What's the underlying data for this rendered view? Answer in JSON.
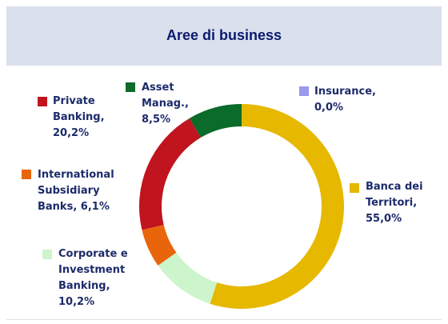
{
  "chart_data": {
    "type": "donut",
    "title": "Aree di business",
    "categories": [
      "Banca dei Territori,",
      "Corporate e Investment Banking,",
      "International Subsidiary Banks,",
      "Private Banking,",
      "Asset Manag.,",
      "Insurance,"
    ],
    "values": [
      55.0,
      10.2,
      6.1,
      20.2,
      8.5,
      0.0
    ],
    "value_labels": [
      "55,0%",
      "10,2%",
      "6,1%",
      "20,2%",
      "8,5%",
      "0,0%"
    ],
    "colors": [
      "#e6b800",
      "#ccf5cc",
      "#e8650c",
      "#c0141e",
      "#0a6b2a",
      "#9999ee"
    ]
  }
}
